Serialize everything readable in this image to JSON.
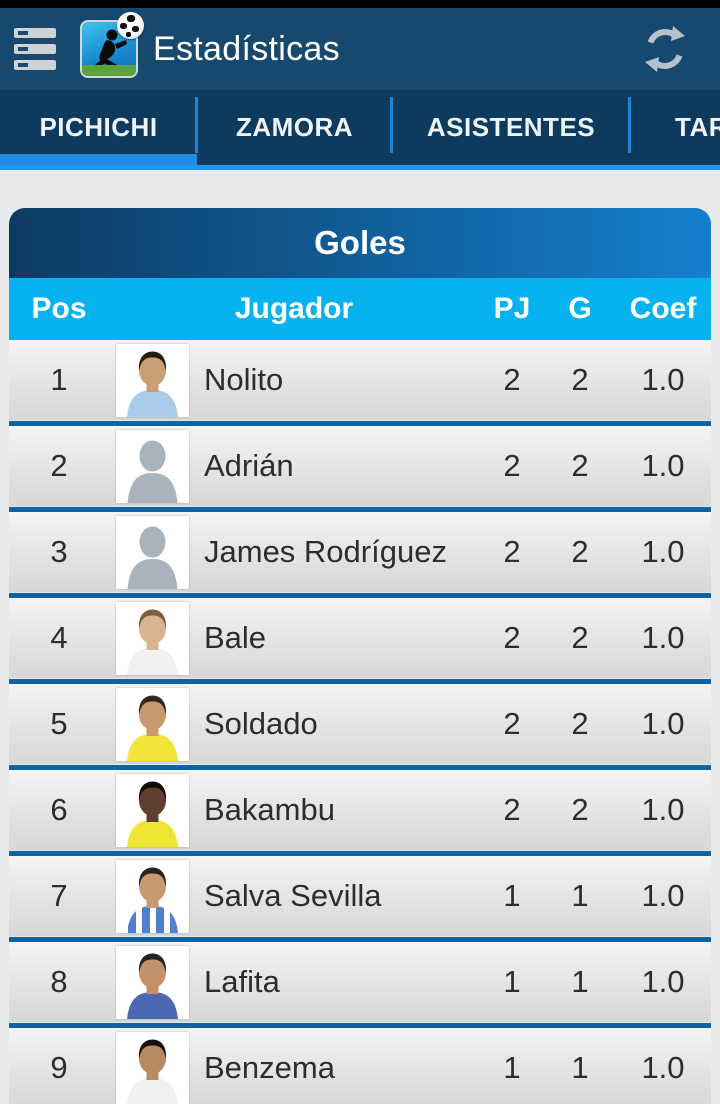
{
  "colors": {
    "accent_blue": "#1f8ce4",
    "app_bar_bg": "#17486e",
    "tab_bar_bg": "#0e3a5d",
    "column_header_bg": "#07b3ef",
    "card_title_gradient_left": "#0d3a63",
    "card_title_gradient_right": "#1480ce",
    "row_separator": "#0f63a2",
    "content_bg": "#e9eaeb",
    "row_text": "#2d2d2d"
  },
  "app_bar": {
    "title": "Estadísticas",
    "menu_icon": "hamburger-list-icon",
    "app_icon": "football-kick-icon",
    "refresh_icon": "refresh-icon"
  },
  "tabs": {
    "items": [
      {
        "label": "PICHICHI",
        "selected": true
      },
      {
        "label": "ZAMORA",
        "selected": false
      },
      {
        "label": "ASISTENTES",
        "selected": false
      },
      {
        "label": "TAR",
        "selected": false
      }
    ]
  },
  "card": {
    "title": "Goles",
    "columns": {
      "pos": "Pos",
      "player": "Jugador",
      "pj": "PJ",
      "g": "G",
      "coef": "Coef"
    }
  },
  "table": {
    "rows": [
      {
        "pos": "1",
        "name": "Nolito",
        "pj": "2",
        "g": "2",
        "coef": "1.0",
        "avatar": {
          "kind": "photo",
          "shirt": "#a8cce9",
          "skin": "#c99f78",
          "hair": "#241b13"
        }
      },
      {
        "pos": "2",
        "name": "Adrián",
        "pj": "2",
        "g": "2",
        "coef": "1.0",
        "avatar": {
          "kind": "placeholder",
          "silhouette": "#a9b3bd"
        }
      },
      {
        "pos": "3",
        "name": "James Rodríguez",
        "pj": "2",
        "g": "2",
        "coef": "1.0",
        "avatar": {
          "kind": "placeholder",
          "silhouette": "#a9b3bd"
        }
      },
      {
        "pos": "4",
        "name": "Bale",
        "pj": "2",
        "g": "2",
        "coef": "1.0",
        "avatar": {
          "kind": "photo",
          "shirt": "#f0f0ee",
          "skin": "#d9b492",
          "hair": "#7d5f3e"
        }
      },
      {
        "pos": "5",
        "name": "Soldado",
        "pj": "2",
        "g": "2",
        "coef": "1.0",
        "avatar": {
          "kind": "photo",
          "shirt": "#f2e438",
          "skin": "#c89a72",
          "hair": "#31271d"
        }
      },
      {
        "pos": "6",
        "name": "Bakambu",
        "pj": "2",
        "g": "2",
        "coef": "1.0",
        "avatar": {
          "kind": "photo",
          "shirt": "#efe432",
          "skin": "#5f4030",
          "hair": "#120d09"
        }
      },
      {
        "pos": "7",
        "name": "Salva Sevilla",
        "pj": "1",
        "g": "1",
        "coef": "1.0",
        "avatar": {
          "kind": "photo",
          "shirt": "#ffffff",
          "stripes": "#4f80cf",
          "skin": "#c89a72",
          "hair": "#2a221b"
        }
      },
      {
        "pos": "8",
        "name": "Lafita",
        "pj": "1",
        "g": "1",
        "coef": "1.0",
        "avatar": {
          "kind": "photo",
          "shirt": "#4b68b5",
          "skin": "#c3926a",
          "hair": "#262626"
        }
      },
      {
        "pos": "9",
        "name": "Benzema",
        "pj": "1",
        "g": "1",
        "coef": "1.0",
        "avatar": {
          "kind": "photo",
          "shirt": "#eef0f2",
          "skin": "#b68b62",
          "hair": "#151009"
        }
      }
    ]
  }
}
